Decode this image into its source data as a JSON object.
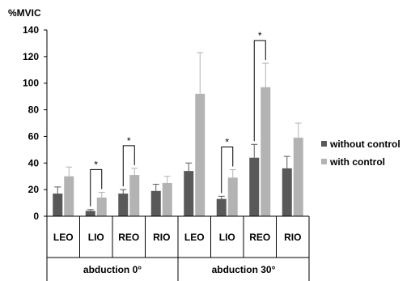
{
  "chart_data": {
    "type": "bar",
    "ylabel": "%MVIC",
    "ylim": [
      0,
      140
    ],
    "yticks": [
      0,
      20,
      40,
      60,
      80,
      100,
      120,
      140
    ],
    "groups": [
      {
        "label": "abduction 0°",
        "categories": [
          "LEO",
          "LIO",
          "REO",
          "RIO"
        ]
      },
      {
        "label": "abduction 30°",
        "categories": [
          "LEO",
          "LIO",
          "REO",
          "RIO"
        ]
      }
    ],
    "categories": [
      "LEO",
      "LIO",
      "REO",
      "RIO",
      "LEO",
      "LIO",
      "REO",
      "RIO"
    ],
    "series": [
      {
        "name": "without control",
        "color": "#595959",
        "values": [
          17,
          4,
          17,
          19,
          34,
          13,
          44,
          36
        ],
        "errors": [
          5,
          1,
          3,
          5,
          6,
          2,
          10,
          9
        ]
      },
      {
        "name": "with control",
        "color": "#b3b3b3",
        "values": [
          30,
          14,
          31,
          25,
          92,
          29,
          97,
          59
        ],
        "errors": [
          7,
          4,
          5,
          5,
          31,
          6,
          18,
          11
        ]
      }
    ],
    "significance": [
      {
        "category_index": 1,
        "label": "*"
      },
      {
        "category_index": 2,
        "label": "*"
      },
      {
        "category_index": 5,
        "label": "*"
      },
      {
        "category_index": 6,
        "label": "*"
      }
    ],
    "legend_position": "right",
    "grid": false
  }
}
